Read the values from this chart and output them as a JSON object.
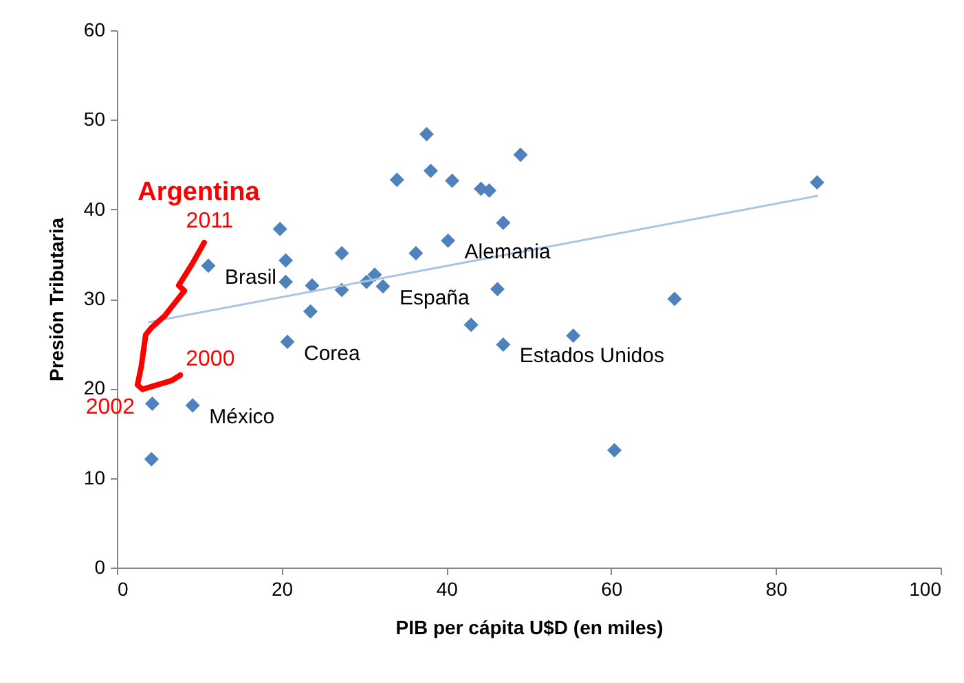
{
  "chart_data": {
    "type": "scatter",
    "xlabel": "PIB per cápita U$D (en miles)",
    "ylabel": "Presión Tributaria",
    "xlim": [
      0,
      100
    ],
    "xticks": [
      0,
      20,
      40,
      60,
      80,
      100
    ],
    "ylim": [
      0,
      60
    ],
    "yticks": [
      0,
      10,
      20,
      30,
      40,
      50,
      60
    ],
    "grid": false,
    "marker": "diamond",
    "series": [
      {
        "color": "#4f81bd",
        "x": [
          11.1,
          19.8,
          20.5,
          20.5,
          23.7,
          23.5,
          20.7,
          27.3,
          27.3,
          30.3,
          31.3,
          32.3,
          36.3,
          4.3,
          9.2,
          4.2,
          34.0,
          37.6,
          38.1,
          40.7,
          44.2,
          45.2,
          49.0,
          46.9,
          40.2,
          46.2,
          43.0,
          46.9,
          55.4,
          67.7,
          85.0,
          60.4
        ],
        "values": [
          33.7,
          37.8,
          34.3,
          31.9,
          31.5,
          28.6,
          25.2,
          35.1,
          31.0,
          31.9,
          32.7,
          31.4,
          35.1,
          18.3,
          18.1,
          12.1,
          43.3,
          48.4,
          44.3,
          43.2,
          42.3,
          42.1,
          46.1,
          38.5,
          36.5,
          31.1,
          27.1,
          24.9,
          25.9,
          30.0,
          43.0,
          13.1
        ]
      },
      {
        "type": "line",
        "marker": "none",
        "color": "#a9c4e4",
        "x": [
          3.9,
          85.0
        ],
        "values": [
          27.4,
          41.5
        ]
      },
      {
        "type": "line",
        "marker": "none",
        "name": "Argentina",
        "color": "#ff0000",
        "x": [
          7.7,
          6.7,
          3.1,
          2.5,
          2.95,
          3.5,
          4.2,
          5.8,
          7.5,
          8.2,
          7.5,
          9.2,
          10.6
        ],
        "values": [
          21.5,
          20.9,
          19.9,
          20.4,
          22.4,
          26.0,
          26.8,
          28.1,
          30.1,
          30.9,
          31.5,
          34.0,
          36.3
        ]
      }
    ],
    "annotations": [
      {
        "text": "Brasil",
        "x": 11.1,
        "y": 33.7
      },
      {
        "text": "Corea",
        "x": 20.7,
        "y": 25.2
      },
      {
        "text": "México",
        "x": 9.2,
        "y": 18.1
      },
      {
        "text": "España",
        "x": 32.3,
        "y": 31.4
      },
      {
        "text": "Alemania",
        "x": 40.2,
        "y": 36.5
      },
      {
        "text": "Estados Unidos",
        "x": 46.9,
        "y": 24.9
      },
      {
        "text": "2011",
        "x": 10.6,
        "y": 36.3
      },
      {
        "text": "2000",
        "x": 7.7,
        "y": 21.5
      },
      {
        "text": "2002",
        "x": 2.5,
        "y": 20.4
      }
    ]
  }
}
